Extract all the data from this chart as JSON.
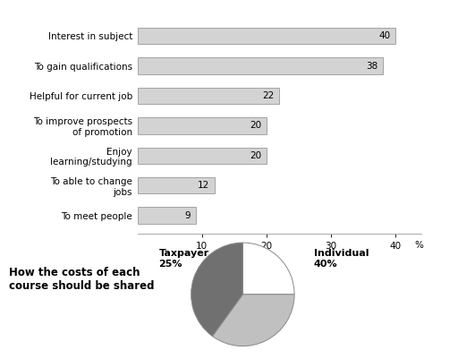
{
  "bar_categories": [
    "To meet people",
    "To able to change\njobs",
    "Enjoy\nlearning/studying",
    "To improve prospects\nof promotion",
    "Helpful for current job",
    "To gain qualifications",
    "Interest in subject"
  ],
  "bar_values": [
    9,
    12,
    20,
    20,
    22,
    38,
    40
  ],
  "bar_color": "#d3d3d3",
  "bar_edgecolor": "#999999",
  "xlim": [
    0,
    44
  ],
  "xticks": [
    10,
    20,
    30,
    40
  ],
  "xlabel": "%",
  "pie_values": [
    25,
    35,
    40
  ],
  "pie_colors": [
    "#ffffff",
    "#c0c0c0",
    "#707070"
  ],
  "pie_startangle": 90,
  "pie_title": "How the costs of each\ncourse should be shared",
  "background_color": "#ffffff",
  "value_label_fontsize": 7.5,
  "bar_label_fontsize": 7.5,
  "pie_label_fontsize": 8,
  "tick_fontsize": 7.5
}
